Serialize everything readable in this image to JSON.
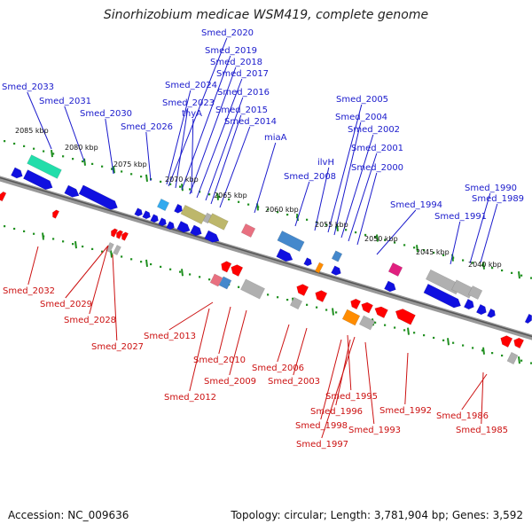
{
  "title": "Sinorhizobium medicae WSM419, complete genome",
  "footer": {
    "accession": "Accession: NC_009636",
    "topology": "Topology: circular; Length: 3,781,904 bp; Genes: 3,592"
  },
  "colors": {
    "forward_gene": "#1010e0",
    "reverse_gene": "#ff0000",
    "forward_label": "#1a1acc",
    "reverse_label": "#cc1111",
    "tick": "#209020",
    "backbone": "#888888",
    "pseudo": "#b0b0b0",
    "khaki": "#bdb76b",
    "teal": "#22ddaa",
    "magenta": "#e0207f",
    "orange": "#ff8c00",
    "sky": "#33aaee",
    "rose": "#e87080",
    "steel": "#4488cc"
  },
  "kbp_ticks": [
    "2085 kbp",
    "2080 kbp",
    "2075 kbp",
    "2070 kbp",
    "2065 kbp",
    "2060 kbp",
    "2055 kbp",
    "2050 kbp",
    "2045 kbp",
    "2040 kbp"
  ],
  "forward_labels": [
    "Smed_2033",
    "Smed_2031",
    "Smed_2030",
    "Smed_2026",
    "Smed_2024",
    "Smed_2023",
    "thyA",
    "Smed_2020",
    "Smed_2019",
    "Smed_2018",
    "Smed_2017",
    "Smed_2016",
    "Smed_2015",
    "Smed_2014",
    "miaA",
    "Smed_2008",
    "ilvH",
    "Smed_2005",
    "Smed_2004",
    "Smed_2002",
    "Smed_2001",
    "Smed_2000",
    "Smed_1994",
    "Smed_1991",
    "Smed_1990",
    "Smed_1989"
  ],
  "reverse_labels": [
    "Smed_2032",
    "Smed_2029",
    "Smed_2028",
    "Smed_2027",
    "Smed_2013",
    "Smed_2012",
    "Smed_2010",
    "Smed_2009",
    "Smed_2006",
    "Smed_2003",
    "Smed_1995",
    "Smed_1996",
    "Smed_1998",
    "Smed_1997",
    "Smed_1993",
    "Smed_1992",
    "Smed_1986",
    "Smed_1985"
  ]
}
